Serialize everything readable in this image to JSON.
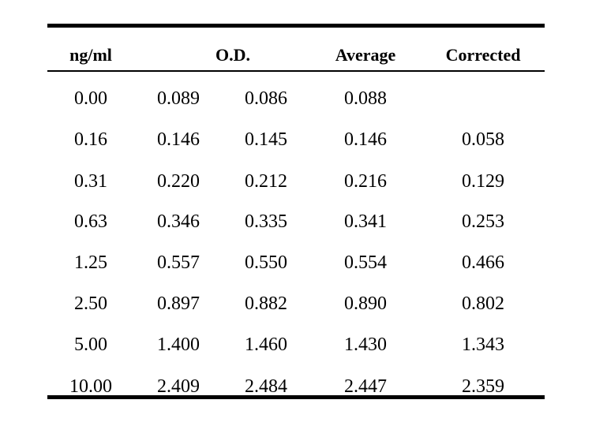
{
  "table": {
    "headers": {
      "concentration": "ng/ml",
      "od": "O.D.",
      "average": "Average",
      "corrected": "Corrected"
    },
    "rows": [
      {
        "concentration": "0.00",
        "od1": "0.089",
        "od2": "0.086",
        "average": "0.088",
        "corrected": ""
      },
      {
        "concentration": "0.16",
        "od1": "0.146",
        "od2": "0.145",
        "average": "0.146",
        "corrected": "0.058"
      },
      {
        "concentration": "0.31",
        "od1": "0.220",
        "od2": "0.212",
        "average": "0.216",
        "corrected": "0.129"
      },
      {
        "concentration": "0.63",
        "od1": "0.346",
        "od2": "0.335",
        "average": "0.341",
        "corrected": "0.253"
      },
      {
        "concentration": "1.25",
        "od1": "0.557",
        "od2": "0.550",
        "average": "0.554",
        "corrected": "0.466"
      },
      {
        "concentration": "2.50",
        "od1": "0.897",
        "od2": "0.882",
        "average": "0.890",
        "corrected": "0.802"
      },
      {
        "concentration": "5.00",
        "od1": "1.400",
        "od2": "1.460",
        "average": "1.430",
        "corrected": "1.343"
      },
      {
        "concentration": "10.00",
        "od1": "2.409",
        "od2": "2.484",
        "average": "2.447",
        "corrected": "2.359"
      }
    ]
  }
}
